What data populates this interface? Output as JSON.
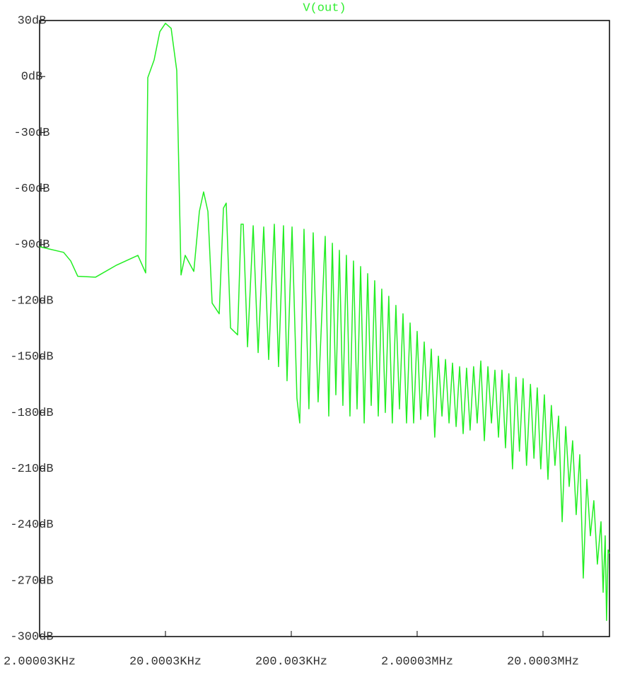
{
  "chart_data": {
    "type": "line",
    "title": "V(out)",
    "xscale": "log",
    "color": "#22ee22",
    "xlim": [
      2000.03,
      67500000
    ],
    "ylim": [
      -300,
      30
    ],
    "xticks": [
      {
        "value": 2000.03,
        "label": "2.00003KHz"
      },
      {
        "value": 20000.3,
        "label": "20.0003KHz"
      },
      {
        "value": 200003,
        "label": "200.003KHz"
      },
      {
        "value": 2000030,
        "label": "2.00003MHz"
      },
      {
        "value": 20000300,
        "label": "20.0003MHz"
      }
    ],
    "yticks": [
      {
        "value": 30,
        "label": "30dB"
      },
      {
        "value": 0,
        "label": "0dB"
      },
      {
        "value": -30,
        "label": "-30dB"
      },
      {
        "value": -60,
        "label": "-60dB"
      },
      {
        "value": -90,
        "label": "-90dB"
      },
      {
        "value": -120,
        "label": "-120dB"
      },
      {
        "value": -150,
        "label": "-150dB"
      },
      {
        "value": -180,
        "label": "-180dB"
      },
      {
        "value": -210,
        "label": "-210dB"
      },
      {
        "value": -240,
        "label": "-240dB"
      },
      {
        "value": -270,
        "label": "-270dB"
      },
      {
        "value": -300,
        "label": "-300dB"
      }
    ],
    "x": [
      2000.03,
      3104,
      3534,
      4020,
      5560,
      8190,
      12080,
      13930,
      14480,
      16260,
      18040,
      20000,
      22200,
      24600,
      26600,
      28700,
      33600,
      37200,
      40200,
      43500,
      47000,
      53500,
      57800,
      60800,
      65800,
      74900,
      79800,
      83000,
      89800,
      99600,
      109000,
      120800,
      132200,
      146600,
      158400,
      173400,
      185000,
      202800,
      221800,
      233400,
      252400,
      276000,
      298600,
      326600,
      372000,
      397000,
      424000,
      452000,
      482000,
      514000,
      548000,
      585000,
      624000,
      666000,
      711000,
      759000,
      809000,
      863000,
      920000,
      982000,
      1047000,
      1117000,
      1190000,
      1270000,
      1356000,
      1447000,
      1544000,
      1647000,
      1758000,
      1876000,
      2000000,
      2134000,
      2276000,
      2430000,
      2590000,
      2760000,
      2950000,
      3150000,
      3360000,
      3585000,
      3820000,
      4080000,
      4350000,
      4640000,
      4940000,
      5270000,
      5620000,
      6000000,
      6410000,
      6840000,
      7300000,
      7790000,
      8300000,
      8860000,
      9440000,
      10070000,
      10700000,
      11450000,
      12200000,
      13000000,
      13900000,
      14800000,
      15900000,
      16950000,
      18000000,
      19200000,
      20500000,
      21900000,
      23300000,
      24900000,
      26600000,
      28400000,
      30300000,
      32300000,
      34400000,
      36700000,
      39200000,
      41800000,
      44600000,
      47600000,
      50700000,
      54100000,
      57800000,
      60100000,
      62400000,
      64000000,
      65800000,
      67400000
    ],
    "values": [
      -91.2,
      -94.2,
      -98.8,
      -107,
      -107.5,
      -101,
      -95.8,
      -105.2,
      -0.6,
      8.9,
      24,
      28.5,
      25.8,
      3.2,
      -106.3,
      -95.8,
      -104.4,
      -72.3,
      -61.8,
      -72.3,
      -121.4,
      -127.1,
      -70.5,
      -67.8,
      -134.7,
      -138.4,
      -79.1,
      -79.1,
      -144.8,
      -79.9,
      -147.9,
      -80.6,
      -151.6,
      -79.1,
      -155.4,
      -79.9,
      -163,
      -80.6,
      -172.4,
      -185.6,
      -81.8,
      -178,
      -83.7,
      -174.3,
      -85.6,
      -181.9,
      -89.3,
      -170.5,
      -93.1,
      -176.2,
      -95.8,
      -181.9,
      -98.8,
      -178.1,
      -101.8,
      -185.6,
      -105.6,
      -176.2,
      -109.4,
      -181.9,
      -113.9,
      -180,
      -117.7,
      -185.6,
      -122.6,
      -178.1,
      -127.1,
      -185.6,
      -132,
      -185.6,
      -136.5,
      -183.7,
      -142.2,
      -181.9,
      -146,
      -193.2,
      -149.8,
      -181.9,
      -151.6,
      -185.6,
      -153.5,
      -187.5,
      -155.4,
      -191.3,
      -156.2,
      -189.4,
      -155.4,
      -185.6,
      -152.4,
      -195.1,
      -155.4,
      -185.6,
      -157.3,
      -193.2,
      -157.3,
      -198.9,
      -159.2,
      -210.2,
      -161.1,
      -200.7,
      -161.8,
      -208.3,
      -164.9,
      -204.5,
      -166.8,
      -210.2,
      -170.5,
      -215.8,
      -176.2,
      -208.3,
      -181.9,
      -238.5,
      -187.5,
      -219.6,
      -195.1,
      -234.7,
      -202.6,
      -268.7,
      -215.8,
      -246,
      -227.2,
      -261.2,
      -238.5,
      -276.3,
      -246,
      -291.4,
      -253.6,
      -255.5
    ]
  }
}
